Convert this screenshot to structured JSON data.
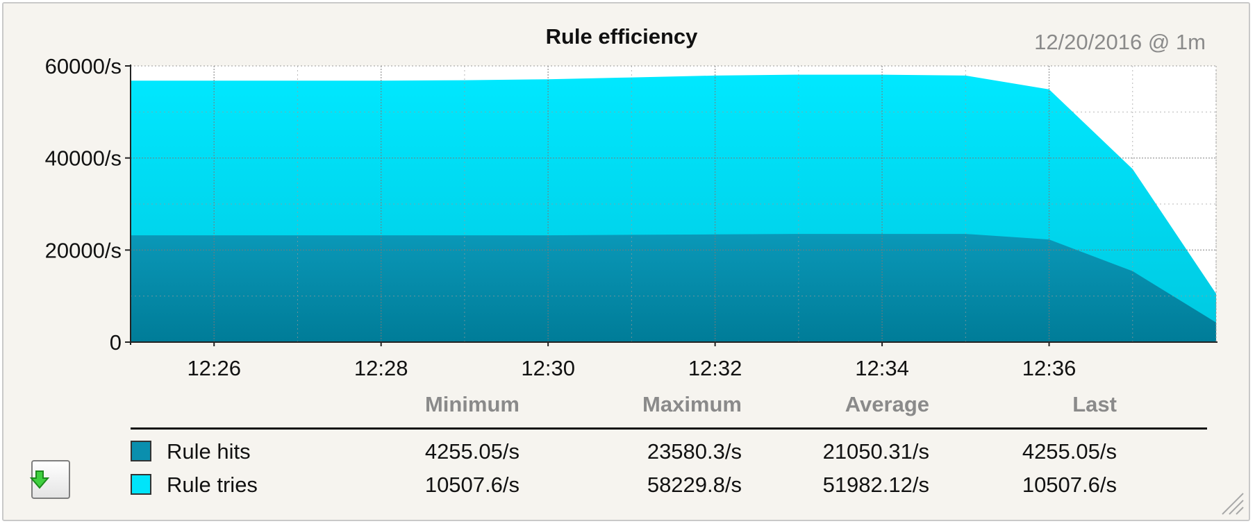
{
  "header": {
    "title": "Rule efficiency",
    "timestamp": "12/20/2016 @ 1m"
  },
  "chart_data": {
    "type": "area",
    "title": "Rule efficiency",
    "stacked": false,
    "x_ticks": [
      "12:26",
      "12:28",
      "12:30",
      "12:32",
      "12:34",
      "12:36"
    ],
    "y_ticks": [
      "0",
      "20000/s",
      "40000/s",
      "60000/s"
    ],
    "ylim": [
      0,
      60000
    ],
    "x": [
      "12:25",
      "12:26",
      "12:27",
      "12:28",
      "12:29",
      "12:30",
      "12:31",
      "12:32",
      "12:33",
      "12:34",
      "12:35",
      "12:36",
      "12:37",
      "12:38"
    ],
    "series": [
      {
        "name": "Rule tries",
        "color": "#00e4fa",
        "values": [
          56800,
          56800,
          56800,
          56800,
          56900,
          57100,
          57500,
          57900,
          58100,
          58100,
          57900,
          54900,
          37600,
          10507.6
        ]
      },
      {
        "name": "Rule hits",
        "color": "#0a8fae",
        "values": [
          23200,
          23200,
          23200,
          23200,
          23200,
          23200,
          23300,
          23400,
          23500,
          23500,
          23500,
          22300,
          15400,
          4255.05
        ]
      }
    ],
    "grid": true,
    "legend": "bottom-table"
  },
  "legend": {
    "headers": {
      "minimum": "Minimum",
      "maximum": "Maximum",
      "average": "Average",
      "last": "Last"
    },
    "rows": [
      {
        "name": "Rule hits",
        "color": "#0a8fae",
        "minimum": "4255.05/s",
        "maximum": "23580.3/s",
        "average": "21050.31/s",
        "last": "4255.05/s"
      },
      {
        "name": "Rule tries",
        "color": "#00e4fa",
        "minimum": "10507.6/s",
        "maximum": "58229.8/s",
        "average": "51982.12/s",
        "last": "10507.6/s"
      }
    ]
  },
  "icons": {
    "export": "download-arrow-icon",
    "resize": "resize-grip-icon"
  }
}
